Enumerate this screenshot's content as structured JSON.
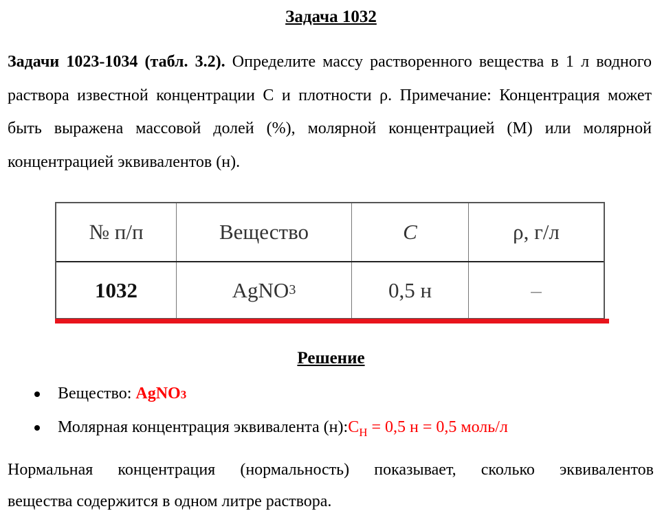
{
  "title": "Задача 1032",
  "intro": {
    "bold": "Задачи 1023-1034 (табл. 3.2).",
    "text": " Определите массу растворенного вещества в 1 л водного раствора известной концентрации С и плотности ρ. Примечание: Концентрация может быть выражена массовой долей (%), молярной концентрацией (М) или молярной концентрацией эквивалентов (н)."
  },
  "table": {
    "headers": [
      "№ п/п",
      "Вещество",
      "C",
      "ρ, г/л"
    ],
    "row": {
      "num": "1032",
      "substance": "AgNO",
      "substance_sub": "3",
      "c": "0,5 н",
      "rho": "–"
    }
  },
  "accent_color": "#ff0000",
  "solution_title": "Решение",
  "bullets": [
    {
      "label": "Вещество: ",
      "value": "AgNO",
      "value_sub": "3"
    },
    {
      "label": "Молярная концентрация эквивалента (н):",
      "value": "C",
      "value_sub": "Н",
      "value_rest": " = 0,5 н = 0,5 моль/л"
    }
  ],
  "paragraph": [
    "Нормальная концентрация (нормальность) показывает, сколько эквивалентов",
    "вещества содержится в одном литре раствора."
  ]
}
